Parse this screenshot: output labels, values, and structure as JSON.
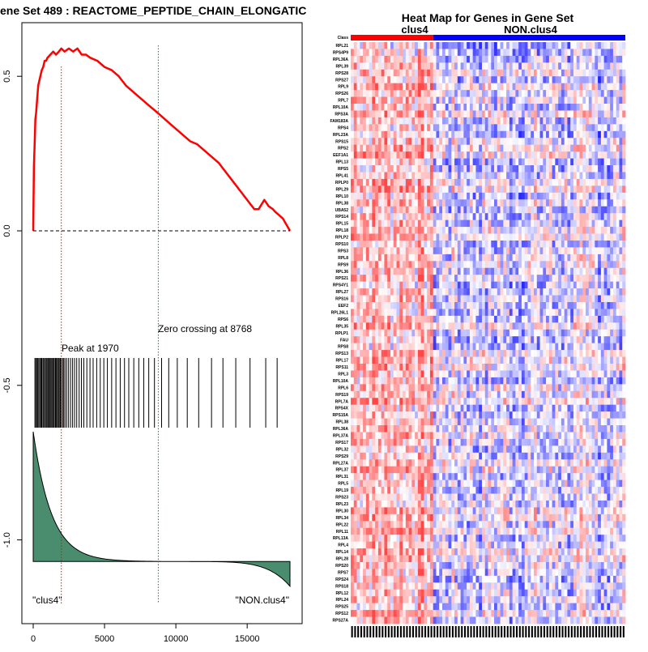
{
  "chart_data": [
    {
      "type": "line",
      "title": "ene Set  489 : REACTOME_PEPTIDE_CHAIN_ELONGATIC",
      "xlabel": "",
      "ylabel": "",
      "xlim": [
        0,
        18000
      ],
      "ylim": [
        -1.2,
        0.6
      ],
      "xticks": [
        0,
        5000,
        10000,
        15000
      ],
      "xtick_labels": [
        "0",
        "5000",
        "10000",
        "15000"
      ],
      "yticks": [
        0.5,
        0.0,
        -0.5,
        -1.0
      ],
      "ytick_labels": [
        "0.5",
        "0.0",
        "-0.5",
        "-1.0"
      ],
      "enrichment_score": {
        "color": "#ff0000",
        "x": [
          0,
          50,
          100,
          150,
          200,
          300,
          350,
          400,
          500,
          600,
          700,
          800,
          900,
          1000,
          1200,
          1400,
          1600,
          1800,
          1970,
          2200,
          2500,
          2800,
          3100,
          3400,
          3700,
          4000,
          4500,
          5000,
          5500,
          6000,
          6500,
          7000,
          7500,
          8000,
          8768,
          9500,
          10000,
          10500,
          11000,
          11500,
          12000,
          12500,
          13000,
          13500,
          14000,
          14500,
          15000,
          15500,
          15800,
          16200,
          16500,
          16800,
          17000,
          17500,
          18000
        ],
        "y": [
          0.0,
          0.21,
          0.28,
          0.36,
          0.38,
          0.44,
          0.47,
          0.48,
          0.5,
          0.52,
          0.53,
          0.55,
          0.55,
          0.56,
          0.57,
          0.58,
          0.57,
          0.58,
          0.59,
          0.58,
          0.59,
          0.58,
          0.59,
          0.57,
          0.57,
          0.56,
          0.55,
          0.53,
          0.52,
          0.5,
          0.47,
          0.45,
          0.43,
          0.41,
          0.38,
          0.35,
          0.33,
          0.31,
          0.29,
          0.28,
          0.26,
          0.24,
          0.22,
          0.19,
          0.16,
          0.13,
          0.1,
          0.07,
          0.07,
          0.1,
          0.08,
          0.07,
          0.06,
          0.04,
          0.0
        ]
      },
      "baseline": 0.0,
      "peak": {
        "x": 1970,
        "label": "Peak at 1970",
        "color": "#ff0000"
      },
      "zero_crossing": {
        "x": 8768,
        "label": "Zero crossing at 8768",
        "color": "#00a000"
      },
      "hit_positions": [
        120,
        180,
        250,
        320,
        390,
        460,
        540,
        600,
        680,
        740,
        820,
        900,
        960,
        1030,
        1090,
        1150,
        1210,
        1290,
        1350,
        1420,
        1480,
        1560,
        1620,
        1700,
        1760,
        1830,
        1900,
        1970,
        2060,
        2140,
        2230,
        2350,
        2480,
        2620,
        2760,
        2900,
        3050,
        3220,
        3380,
        3550,
        3760,
        3980,
        4200,
        4450,
        4700,
        4950,
        5200,
        5500,
        5800,
        6100,
        6400,
        6700,
        7050,
        7400,
        7750,
        8100,
        8500,
        9000,
        9500,
        10100,
        10800,
        11600,
        12500,
        13300,
        14200,
        15200,
        16300,
        17100
      ],
      "ranked_metric": {
        "fill_color": "#4a8c6e",
        "y_top": -0.65,
        "y_base": -1.07,
        "y_end": -1.15
      },
      "group_labels": {
        "left": "\"clus4\"",
        "right": "\"NON.clus4\""
      }
    },
    {
      "type": "heatmap",
      "title": "Heat Map for Genes in Gene Set",
      "groups": [
        {
          "name": "clus4",
          "color": "#ff0000",
          "fraction": 0.3
        },
        {
          "name": "NON.clus4",
          "color": "#0000ff",
          "fraction": 0.7
        }
      ],
      "class_label": "Class",
      "genes": [
        "RPL21",
        "RPS4P9",
        "RPL36A",
        "RPL39",
        "RPS28",
        "RPS27",
        "RPL9",
        "RPS26",
        "RPL7",
        "RPL10A",
        "RPS3A",
        "FAM183A",
        "RPS4",
        "RPL23A",
        "RPS15",
        "RPS2",
        "EEF1A1",
        "RPL13",
        "RPS5",
        "RPL41",
        "RPLP0",
        "RPL29",
        "RPL10",
        "RPL38",
        "UBA52",
        "RPS14",
        "RPL15",
        "RPL18",
        "RPLP2",
        "RPS10",
        "RPS3",
        "RPL8",
        "RPS9",
        "RPL36",
        "RPS21",
        "RPS4Y1",
        "RPL27",
        "RPS16",
        "EEF2",
        "RPL26L1",
        "RPS6",
        "RPL35",
        "RPLP1",
        "FAU",
        "RPS8",
        "RPS13",
        "RPL17",
        "RPS11",
        "RPL3",
        "RPL10A",
        "RPL6",
        "RPS19",
        "RPL7A",
        "RPS4X",
        "RPS15A",
        "RPL38",
        "RPL36A",
        "RPL37A",
        "RPS17",
        "RPL32",
        "RPS29",
        "RPL27A",
        "RPL37",
        "RPL31",
        "RPL5",
        "RPL19",
        "RPS23",
        "RPL23",
        "RPL30",
        "RPL34",
        "RPL22",
        "RPL11",
        "RPL13A",
        "RPL4",
        "RPL14",
        "RPL28",
        "RPS20",
        "RPS7",
        "RPS24",
        "RPS18",
        "RPL12",
        "RPL24",
        "RPS25",
        "RPS12",
        "RPS27A"
      ]
    }
  ]
}
